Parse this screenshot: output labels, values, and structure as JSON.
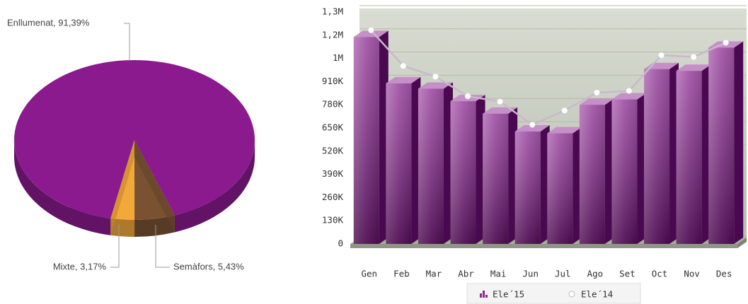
{
  "chart_data": [
    {
      "type": "pie3d",
      "values": [
        91.39,
        5.43,
        3.17
      ],
      "value_labels": [
        "Enllumenat, 91,39%",
        "Semàfors, 5,43%",
        "Mixte, 3,17%"
      ],
      "colors": [
        "#8a1a8e",
        "#7a5232",
        "#f2a83a"
      ]
    },
    {
      "type": "bar3d",
      "categories": [
        "Gen",
        "Feb",
        "Mar",
        "Abr",
        "Mai",
        "Jun",
        "Jul",
        "Ago",
        "Set",
        "Oct",
        "Nov",
        "Des"
      ],
      "series": [
        {
          "name": "Ele´15",
          "color": "#8a2a90",
          "values": [
            1160000,
            900000,
            870000,
            800000,
            730000,
            630000,
            620000,
            780000,
            810000,
            980000,
            970000,
            1100000
          ]
        },
        {
          "name": "Ele´14",
          "color": "#ffffff",
          "type": "line",
          "values": [
            1180000,
            980000,
            920000,
            810000,
            780000,
            650000,
            730000,
            830000,
            840000,
            1040000,
            1030000,
            1110000
          ]
        }
      ],
      "ylim": [
        0,
        1300000
      ],
      "yticks": [
        0,
        {
          "value": 130000,
          "label": "130K"
        },
        {
          "value": 260000,
          "label": "260K"
        },
        {
          "value": 390000,
          "label": "390K"
        },
        {
          "value": 520000,
          "label": "520K"
        },
        {
          "value": 650000,
          "label": "650K"
        },
        {
          "value": 780000,
          "label": "780K"
        },
        {
          "value": 910000,
          "label": "910K"
        },
        {
          "value": 1040000,
          "label": "1M"
        },
        {
          "value": 1170000,
          "label": "1,2M"
        },
        {
          "value": 1300000,
          "label": "1,3M"
        }
      ],
      "grid": true
    }
  ]
}
